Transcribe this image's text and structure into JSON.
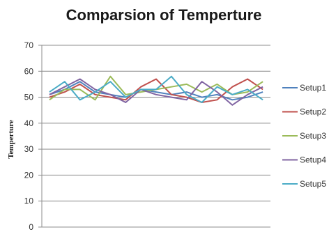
{
  "chart_data": {
    "type": "line",
    "title": "Comparsion of Temperture",
    "xlabel": "",
    "ylabel": "Temperture",
    "ylim": [
      0,
      70
    ],
    "yticks": [
      0,
      10,
      20,
      30,
      40,
      50,
      60,
      70
    ],
    "grid": true,
    "legend_position": "right",
    "x": [
      1,
      2,
      3,
      4,
      5,
      6,
      7,
      8,
      9,
      10,
      11,
      12,
      13,
      14,
      15
    ],
    "series": [
      {
        "name": "Setup1",
        "color": "#4f81bd",
        "values": [
          51,
          53,
          56,
          52,
          51,
          50,
          53,
          52,
          51,
          52,
          50,
          51,
          49,
          50,
          52
        ]
      },
      {
        "name": "Setup2",
        "color": "#c0504d",
        "values": [
          50,
          52,
          55,
          51,
          50,
          49,
          54,
          57,
          51,
          50,
          48,
          49,
          54,
          57,
          53
        ]
      },
      {
        "name": "Setup3",
        "color": "#9bbb59",
        "values": [
          49,
          53,
          53,
          49,
          58,
          51,
          52,
          53,
          54,
          55,
          52,
          55,
          51,
          52,
          56
        ]
      },
      {
        "name": "Setup4",
        "color": "#8064a2",
        "values": [
          51,
          54,
          57,
          53,
          51,
          48,
          53,
          51,
          50,
          49,
          56,
          52,
          47,
          51,
          54
        ]
      },
      {
        "name": "Setup5",
        "color": "#4bacc6",
        "values": [
          52,
          56,
          49,
          52,
          56,
          50,
          53,
          53,
          58,
          51,
          48,
          54,
          51,
          53,
          49
        ]
      }
    ]
  }
}
